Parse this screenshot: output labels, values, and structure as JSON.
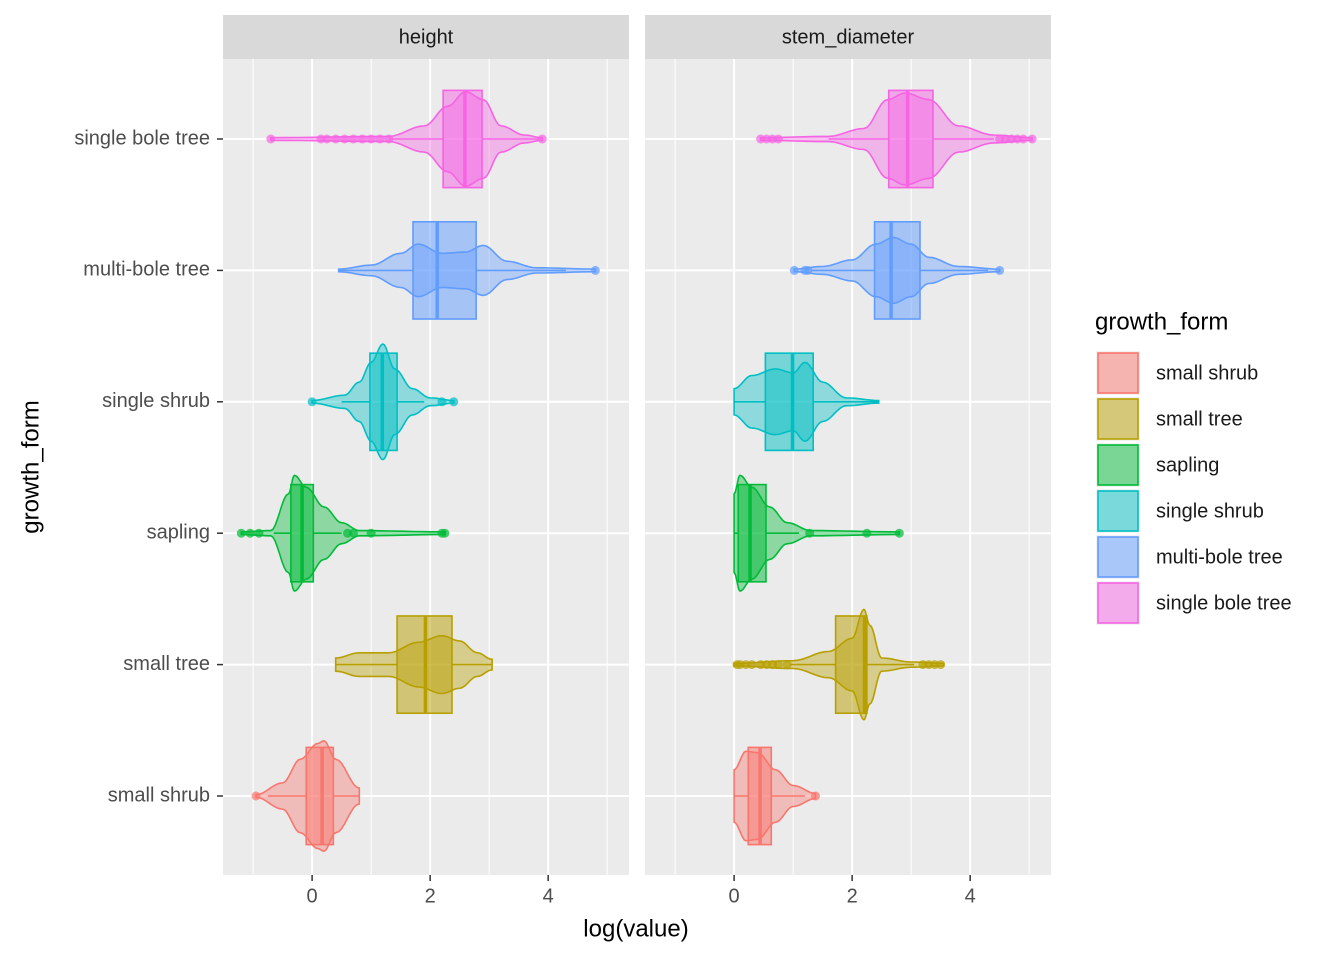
{
  "chart_data": {
    "type": "violin",
    "x_label": "log(value)",
    "y_label": "growth_form",
    "legend_title": "growth_form",
    "categories": [
      "small shrub",
      "small tree",
      "sapling",
      "single shrub",
      "multi-bole tree",
      "single bole tree"
    ],
    "colors": [
      "#F8766D",
      "#B79F00",
      "#00BA38",
      "#00BFC4",
      "#619CFF",
      "#F564E3"
    ],
    "xlim": [
      -1.51,
      5.37
    ],
    "xticks": [
      0,
      2,
      4
    ],
    "minor_xticks": [
      -1,
      1,
      3,
      5
    ],
    "grid": true,
    "facets": [
      {
        "title": "height",
        "boxes": [
          {
            "low": -0.75,
            "q1": -0.1,
            "median": 0.17,
            "q3": 0.36,
            "high": 0.8,
            "outliers": [
              -0.95
            ],
            "violin": {
              "x": [
                -0.95,
                -0.5,
                -0.2,
                0.1,
                0.2,
                0.4,
                0.8
              ],
              "width": [
                0.01,
                0.1,
                0.28,
                0.4,
                0.42,
                0.28,
                0.06
              ]
            }
          },
          {
            "low": 0.4,
            "q1": 1.44,
            "median": 1.92,
            "q3": 2.37,
            "high": 3.05,
            "outliers": [],
            "violin": {
              "x": [
                0.4,
                0.8,
                1.3,
                1.8,
                2.2,
                2.5,
                2.8,
                3.05
              ],
              "width": [
                0.05,
                0.09,
                0.09,
                0.17,
                0.22,
                0.18,
                0.09,
                0.04
              ]
            }
          },
          {
            "low": -0.65,
            "q1": -0.36,
            "median": -0.17,
            "q3": 0.02,
            "high": 0.5,
            "outliers": [
              -1.2,
              -1.05,
              -0.9,
              0.6,
              0.7,
              1.0,
              2.2,
              2.25
            ],
            "violin": {
              "x": [
                -1.2,
                -0.7,
                -0.4,
                -0.3,
                -0.1,
                0.2,
                0.5,
                0.8,
                2.25
              ],
              "width": [
                0.01,
                0.02,
                0.3,
                0.44,
                0.35,
                0.2,
                0.08,
                0.02,
                0.01
              ]
            }
          },
          {
            "low": 0.5,
            "q1": 0.98,
            "median": 1.19,
            "q3": 1.44,
            "high": 1.9,
            "outliers": [
              0,
              2.2,
              2.4
            ],
            "violin": {
              "x": [
                0,
                0.55,
                0.8,
                1.0,
                1.2,
                1.4,
                1.7,
                2.0,
                2.4
              ],
              "width": [
                0.01,
                0.05,
                0.15,
                0.3,
                0.44,
                0.25,
                0.1,
                0.03,
                0.01
              ]
            }
          },
          {
            "low": 0.45,
            "q1": 1.71,
            "median": 2.12,
            "q3": 2.78,
            "high": 4.3,
            "outliers": [
              4.8
            ],
            "violin": {
              "x": [
                0.45,
                1.0,
                1.5,
                1.8,
                2.2,
                2.6,
                2.9,
                3.3,
                3.8,
                4.8
              ],
              "width": [
                0.01,
                0.04,
                0.13,
                0.2,
                0.13,
                0.14,
                0.19,
                0.07,
                0.02,
                0.01
              ]
            }
          },
          {
            "low": 1.3,
            "q1": 2.22,
            "median": 2.59,
            "q3": 2.88,
            "high": 3.85,
            "outliers": [
              -0.7,
              0.15,
              0.25,
              0.4,
              0.55,
              0.7,
              0.85,
              1.0,
              1.15,
              1.3,
              3.9
            ],
            "violin": {
              "x": [
                -0.7,
                1.3,
                1.9,
                2.3,
                2.6,
                2.9,
                3.2,
                3.6,
                3.9
              ],
              "width": [
                0.01,
                0.02,
                0.1,
                0.25,
                0.36,
                0.3,
                0.1,
                0.03,
                0.01
              ]
            }
          }
        ]
      },
      {
        "title": "stem_diameter",
        "boxes": [
          {
            "low": 0,
            "q1": 0.24,
            "median": 0.44,
            "q3": 0.63,
            "high": 1.2,
            "outliers": [
              1.38
            ],
            "violin": {
              "x": [
                0,
                0.2,
                0.4,
                0.7,
                1.0,
                1.38
              ],
              "width": [
                0.2,
                0.34,
                0.33,
                0.2,
                0.08,
                0.02
              ]
            }
          },
          {
            "low": 0.95,
            "q1": 1.72,
            "median": 2.21,
            "q3": 2.25,
            "high": 3.05,
            "outliers": [
              0.05,
              0.1,
              0.2,
              0.3,
              0.45,
              0.55,
              0.65,
              0.75,
              0.9,
              3.2,
              3.3,
              3.4,
              3.5
            ],
            "violin": {
              "x": [
                0,
                1.0,
                1.6,
                2.0,
                2.2,
                2.3,
                2.5,
                3.0,
                3.55
              ],
              "width": [
                0.01,
                0.03,
                0.1,
                0.2,
                0.42,
                0.3,
                0.05,
                0.02,
                0.01
              ]
            }
          },
          {
            "low": 0,
            "q1": 0.07,
            "median": 0.27,
            "q3": 0.54,
            "high": 1.1,
            "outliers": [
              1.28,
              2.25,
              2.8
            ],
            "violin": {
              "x": [
                0,
                0.1,
                0.3,
                0.6,
                0.9,
                1.3,
                2.8
              ],
              "width": [
                0.3,
                0.44,
                0.35,
                0.2,
                0.08,
                0.02,
                0.01
              ]
            }
          },
          {
            "low": 0,
            "q1": 0.53,
            "median": 0.99,
            "q3": 1.34,
            "high": 2.45,
            "outliers": [],
            "violin": {
              "x": [
                0,
                0.3,
                0.7,
                1.0,
                1.2,
                1.5,
                1.9,
                2.45
              ],
              "width": [
                0.1,
                0.2,
                0.25,
                0.22,
                0.3,
                0.15,
                0.03,
                0.01
              ]
            }
          },
          {
            "low": 1.3,
            "q1": 2.38,
            "median": 2.66,
            "q3": 3.15,
            "high": 4.3,
            "outliers": [
              1.02,
              1.2,
              1.25,
              4.5
            ],
            "violin": {
              "x": [
                1.02,
                1.5,
                2.0,
                2.4,
                2.7,
                3.0,
                3.3,
                3.8,
                4.5
              ],
              "width": [
                0.01,
                0.03,
                0.08,
                0.2,
                0.25,
                0.2,
                0.1,
                0.03,
                0.01
              ]
            }
          },
          {
            "low": 1.6,
            "q1": 2.62,
            "median": 2.94,
            "q3": 3.37,
            "high": 4.4,
            "outliers": [
              0.45,
              0.55,
              0.65,
              0.75,
              4.5,
              4.6,
              4.7,
              4.8,
              4.9,
              5.05
            ],
            "violin": {
              "x": [
                0.45,
                1.6,
                2.2,
                2.6,
                2.9,
                3.3,
                3.8,
                4.4,
                5.05
              ],
              "width": [
                0.01,
                0.02,
                0.08,
                0.3,
                0.35,
                0.3,
                0.1,
                0.03,
                0.01
              ]
            }
          }
        ]
      }
    ]
  }
}
